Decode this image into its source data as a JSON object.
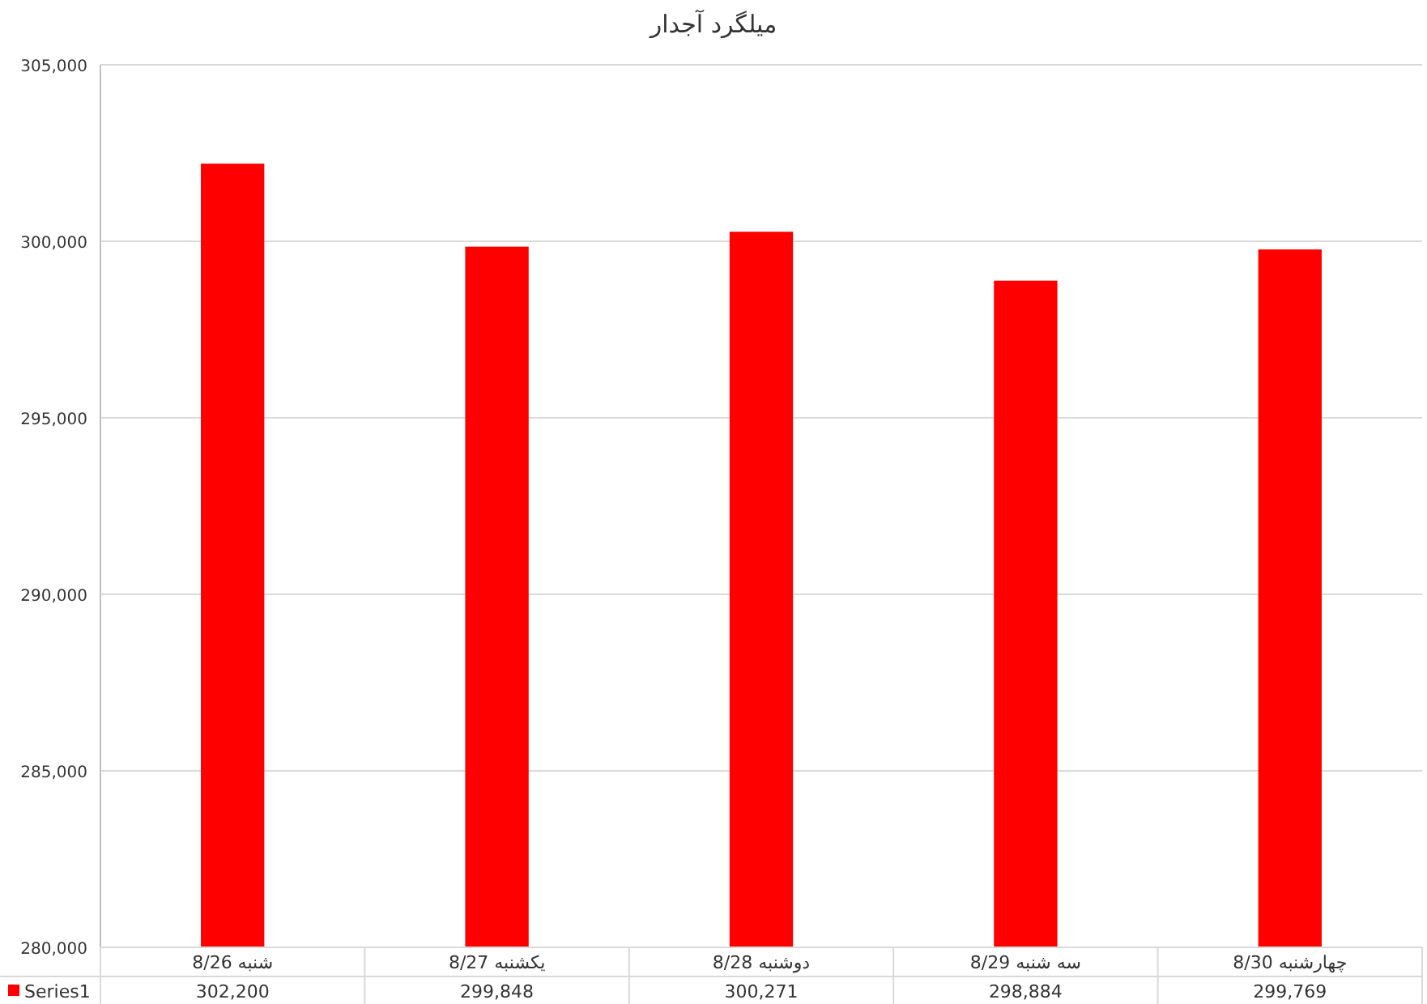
{
  "chart_data": {
    "type": "bar",
    "title": "میلگرد آجدار",
    "categories": [
      "شنبه 8/26",
      "یکشنبه 8/27",
      "دوشنبه 8/28",
      "سه شنبه 8/29",
      "چهارشنبه 8/30"
    ],
    "series": [
      {
        "name": "Series1",
        "color": "#ff0000",
        "values": [
          302200,
          299848,
          300271,
          298884,
          299769
        ],
        "value_labels": [
          "302,200",
          "299,848",
          "300,271",
          "298,884",
          "299,769"
        ]
      }
    ],
    "ylim": [
      280000,
      305000
    ],
    "yticks": [
      {
        "value": 280000,
        "label": "280,000"
      },
      {
        "value": 285000,
        "label": "285,000"
      },
      {
        "value": 290000,
        "label": "290,000"
      },
      {
        "value": 295000,
        "label": "295,000"
      },
      {
        "value": 300000,
        "label": "300,000"
      },
      {
        "value": 305000,
        "label": "305,000"
      }
    ],
    "grid": "y",
    "legend": "bottom left"
  }
}
